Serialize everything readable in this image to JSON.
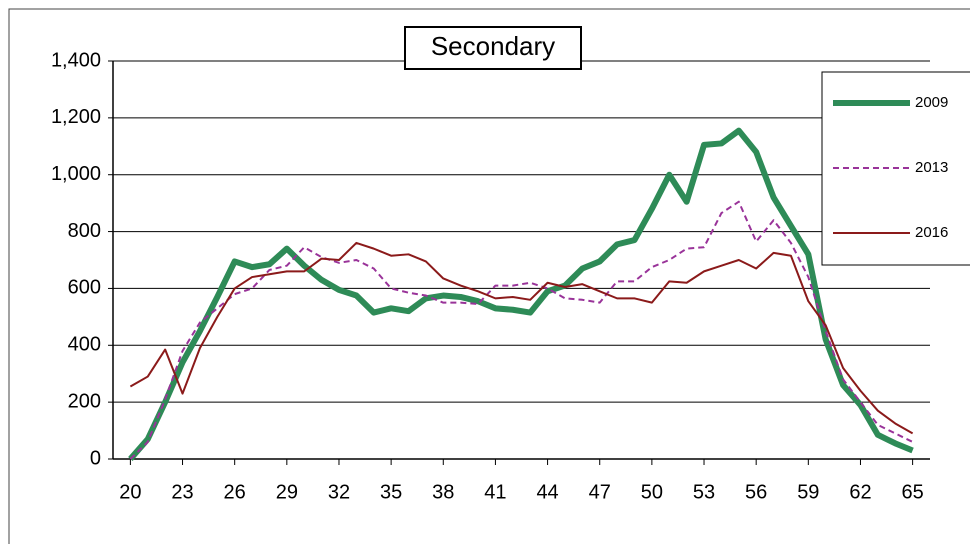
{
  "chart_data": {
    "type": "line",
    "title": "Secondary",
    "x": [
      20,
      21,
      22,
      23,
      24,
      25,
      26,
      27,
      28,
      29,
      30,
      31,
      32,
      33,
      34,
      35,
      36,
      37,
      38,
      39,
      40,
      41,
      42,
      43,
      44,
      45,
      46,
      47,
      48,
      49,
      50,
      51,
      52,
      53,
      54,
      55,
      56,
      57,
      58,
      59,
      60,
      61,
      62,
      63,
      64,
      65
    ],
    "series": [
      {
        "name": "2009",
        "color": "#2e8b57",
        "width": 6,
        "dashed": false,
        "values": [
          0,
          70,
          200,
          340,
          450,
          570,
          695,
          675,
          685,
          740,
          680,
          630,
          595,
          575,
          515,
          530,
          520,
          565,
          575,
          570,
          555,
          530,
          525,
          515,
          590,
          610,
          670,
          695,
          755,
          770,
          880,
          1000,
          905,
          1105,
          1110,
          1155,
          1080,
          920,
          820,
          720,
          420,
          260,
          190,
          85,
          55,
          30
        ]
      },
      {
        "name": "2013",
        "color": "#993399",
        "width": 2,
        "dashed": true,
        "values": [
          0,
          60,
          210,
          380,
          480,
          530,
          580,
          600,
          665,
          680,
          745,
          710,
          690,
          700,
          670,
          600,
          585,
          575,
          550,
          550,
          545,
          610,
          610,
          620,
          600,
          565,
          560,
          550,
          625,
          625,
          675,
          700,
          740,
          745,
          865,
          905,
          765,
          840,
          760,
          640,
          450,
          280,
          200,
          120,
          90,
          60
        ]
      },
      {
        "name": "2016",
        "color": "#8b1a1a",
        "width": 2,
        "dashed": false,
        "values": [
          255,
          290,
          385,
          230,
          390,
          500,
          600,
          640,
          650,
          660,
          660,
          705,
          700,
          760,
          740,
          715,
          720,
          695,
          635,
          610,
          590,
          565,
          570,
          560,
          620,
          605,
          615,
          590,
          565,
          565,
          550,
          625,
          620,
          660,
          680,
          700,
          670,
          725,
          715,
          555,
          470,
          320,
          240,
          170,
          125,
          90
        ]
      }
    ],
    "xlim": [
      19,
      66
    ],
    "xticks": [
      20,
      23,
      26,
      29,
      32,
      35,
      38,
      41,
      44,
      47,
      50,
      53,
      56,
      59,
      62,
      65
    ],
    "ylim": [
      0,
      1400
    ],
    "yticks": [
      0,
      200,
      400,
      600,
      800,
      {
        "value": 1000,
        "label": "1,000"
      },
      {
        "value": 1200,
        "label": "1,200"
      },
      {
        "value": 1400,
        "label": "1,400"
      }
    ],
    "grid": true,
    "legend": "right"
  }
}
